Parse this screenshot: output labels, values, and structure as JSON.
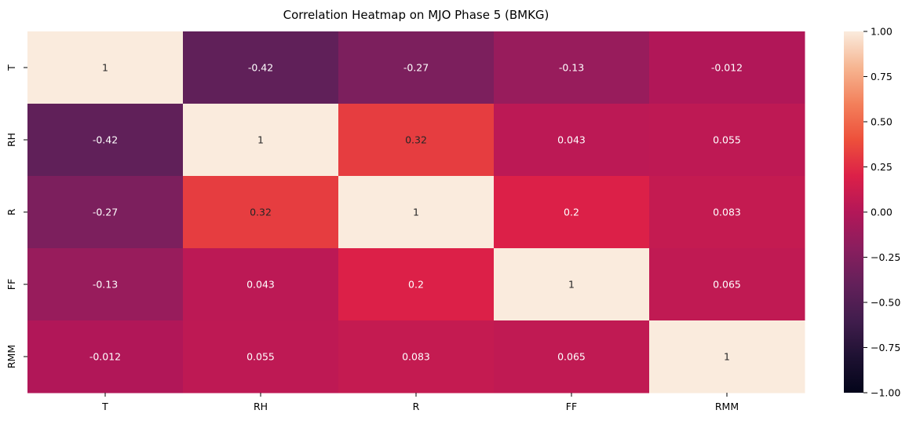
{
  "chart_data": {
    "type": "heatmap",
    "title": "Correlation Heatmap on MJO Phase 5 (BMKG)",
    "xlabel": "",
    "ylabel": "",
    "x_labels": [
      "T",
      "RH",
      "R",
      "FF",
      "RMM"
    ],
    "y_labels": [
      "T",
      "RH",
      "R",
      "FF",
      "RMM"
    ],
    "values": [
      [
        1,
        -0.42,
        -0.27,
        -0.13,
        -0.012
      ],
      [
        -0.42,
        1,
        0.32,
        0.043,
        0.055
      ],
      [
        -0.27,
        0.32,
        1,
        0.2,
        0.083
      ],
      [
        -0.13,
        0.043,
        0.2,
        1,
        0.065
      ],
      [
        -0.012,
        0.055,
        0.083,
        0.065,
        1
      ]
    ],
    "annotations": [
      [
        "1",
        "-0.42",
        "-0.27",
        "-0.13",
        "-0.012"
      ],
      [
        "-0.42",
        "1",
        "0.32",
        "0.043",
        "0.055"
      ],
      [
        "-0.27",
        "0.32",
        "1",
        "0.2",
        "0.083"
      ],
      [
        "-0.13",
        "0.043",
        "0.2",
        "1",
        "0.065"
      ],
      [
        "-0.012",
        "0.055",
        "0.083",
        "0.065",
        "1"
      ]
    ],
    "colorbar": {
      "colormap": "rocket",
      "vmin": -1,
      "vmax": 1,
      "ticks": [
        1.0,
        0.75,
        0.5,
        0.25,
        0.0,
        -0.25,
        -0.5,
        -0.75,
        -1.0
      ],
      "tick_labels": [
        "1.00",
        "0.75",
        "0.50",
        "0.25",
        "0.00",
        "−0.25",
        "−0.50",
        "−0.75",
        "−1.00"
      ]
    },
    "grid": false,
    "legend": "colorbar-right"
  }
}
